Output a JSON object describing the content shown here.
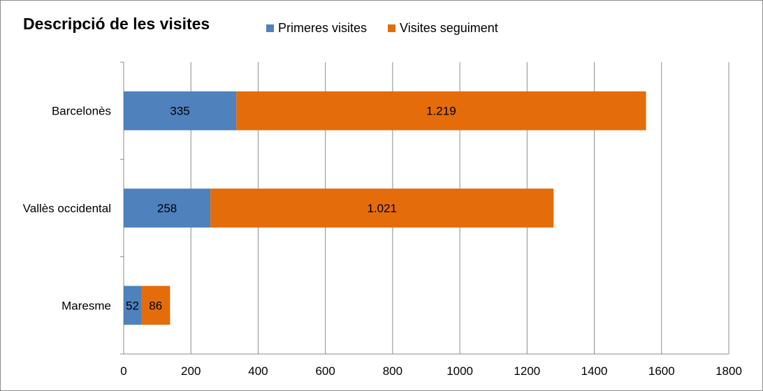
{
  "chart_data": {
    "type": "bar",
    "orientation": "horizontal",
    "stacked": true,
    "title": "Descripció de les visites",
    "categories": [
      "Barcelonès",
      "Vallès occidental",
      "Maresme"
    ],
    "series": [
      {
        "name": "Primeres visites",
        "color": "#4f81bd",
        "values": [
          335,
          258,
          52
        ],
        "labels": [
          "335",
          "258",
          "52"
        ]
      },
      {
        "name": "Visites seguiment",
        "color": "#e46c0a",
        "values": [
          1219,
          1021,
          86
        ],
        "labels": [
          "1.219",
          "1.021",
          "86"
        ]
      }
    ],
    "xlim": [
      0,
      1800
    ],
    "xticks": [
      0,
      200,
      400,
      600,
      800,
      1000,
      1200,
      1400,
      1600,
      1800
    ],
    "xlabel": "",
    "ylabel": "",
    "grid": "vertical",
    "legend_position": "top"
  }
}
